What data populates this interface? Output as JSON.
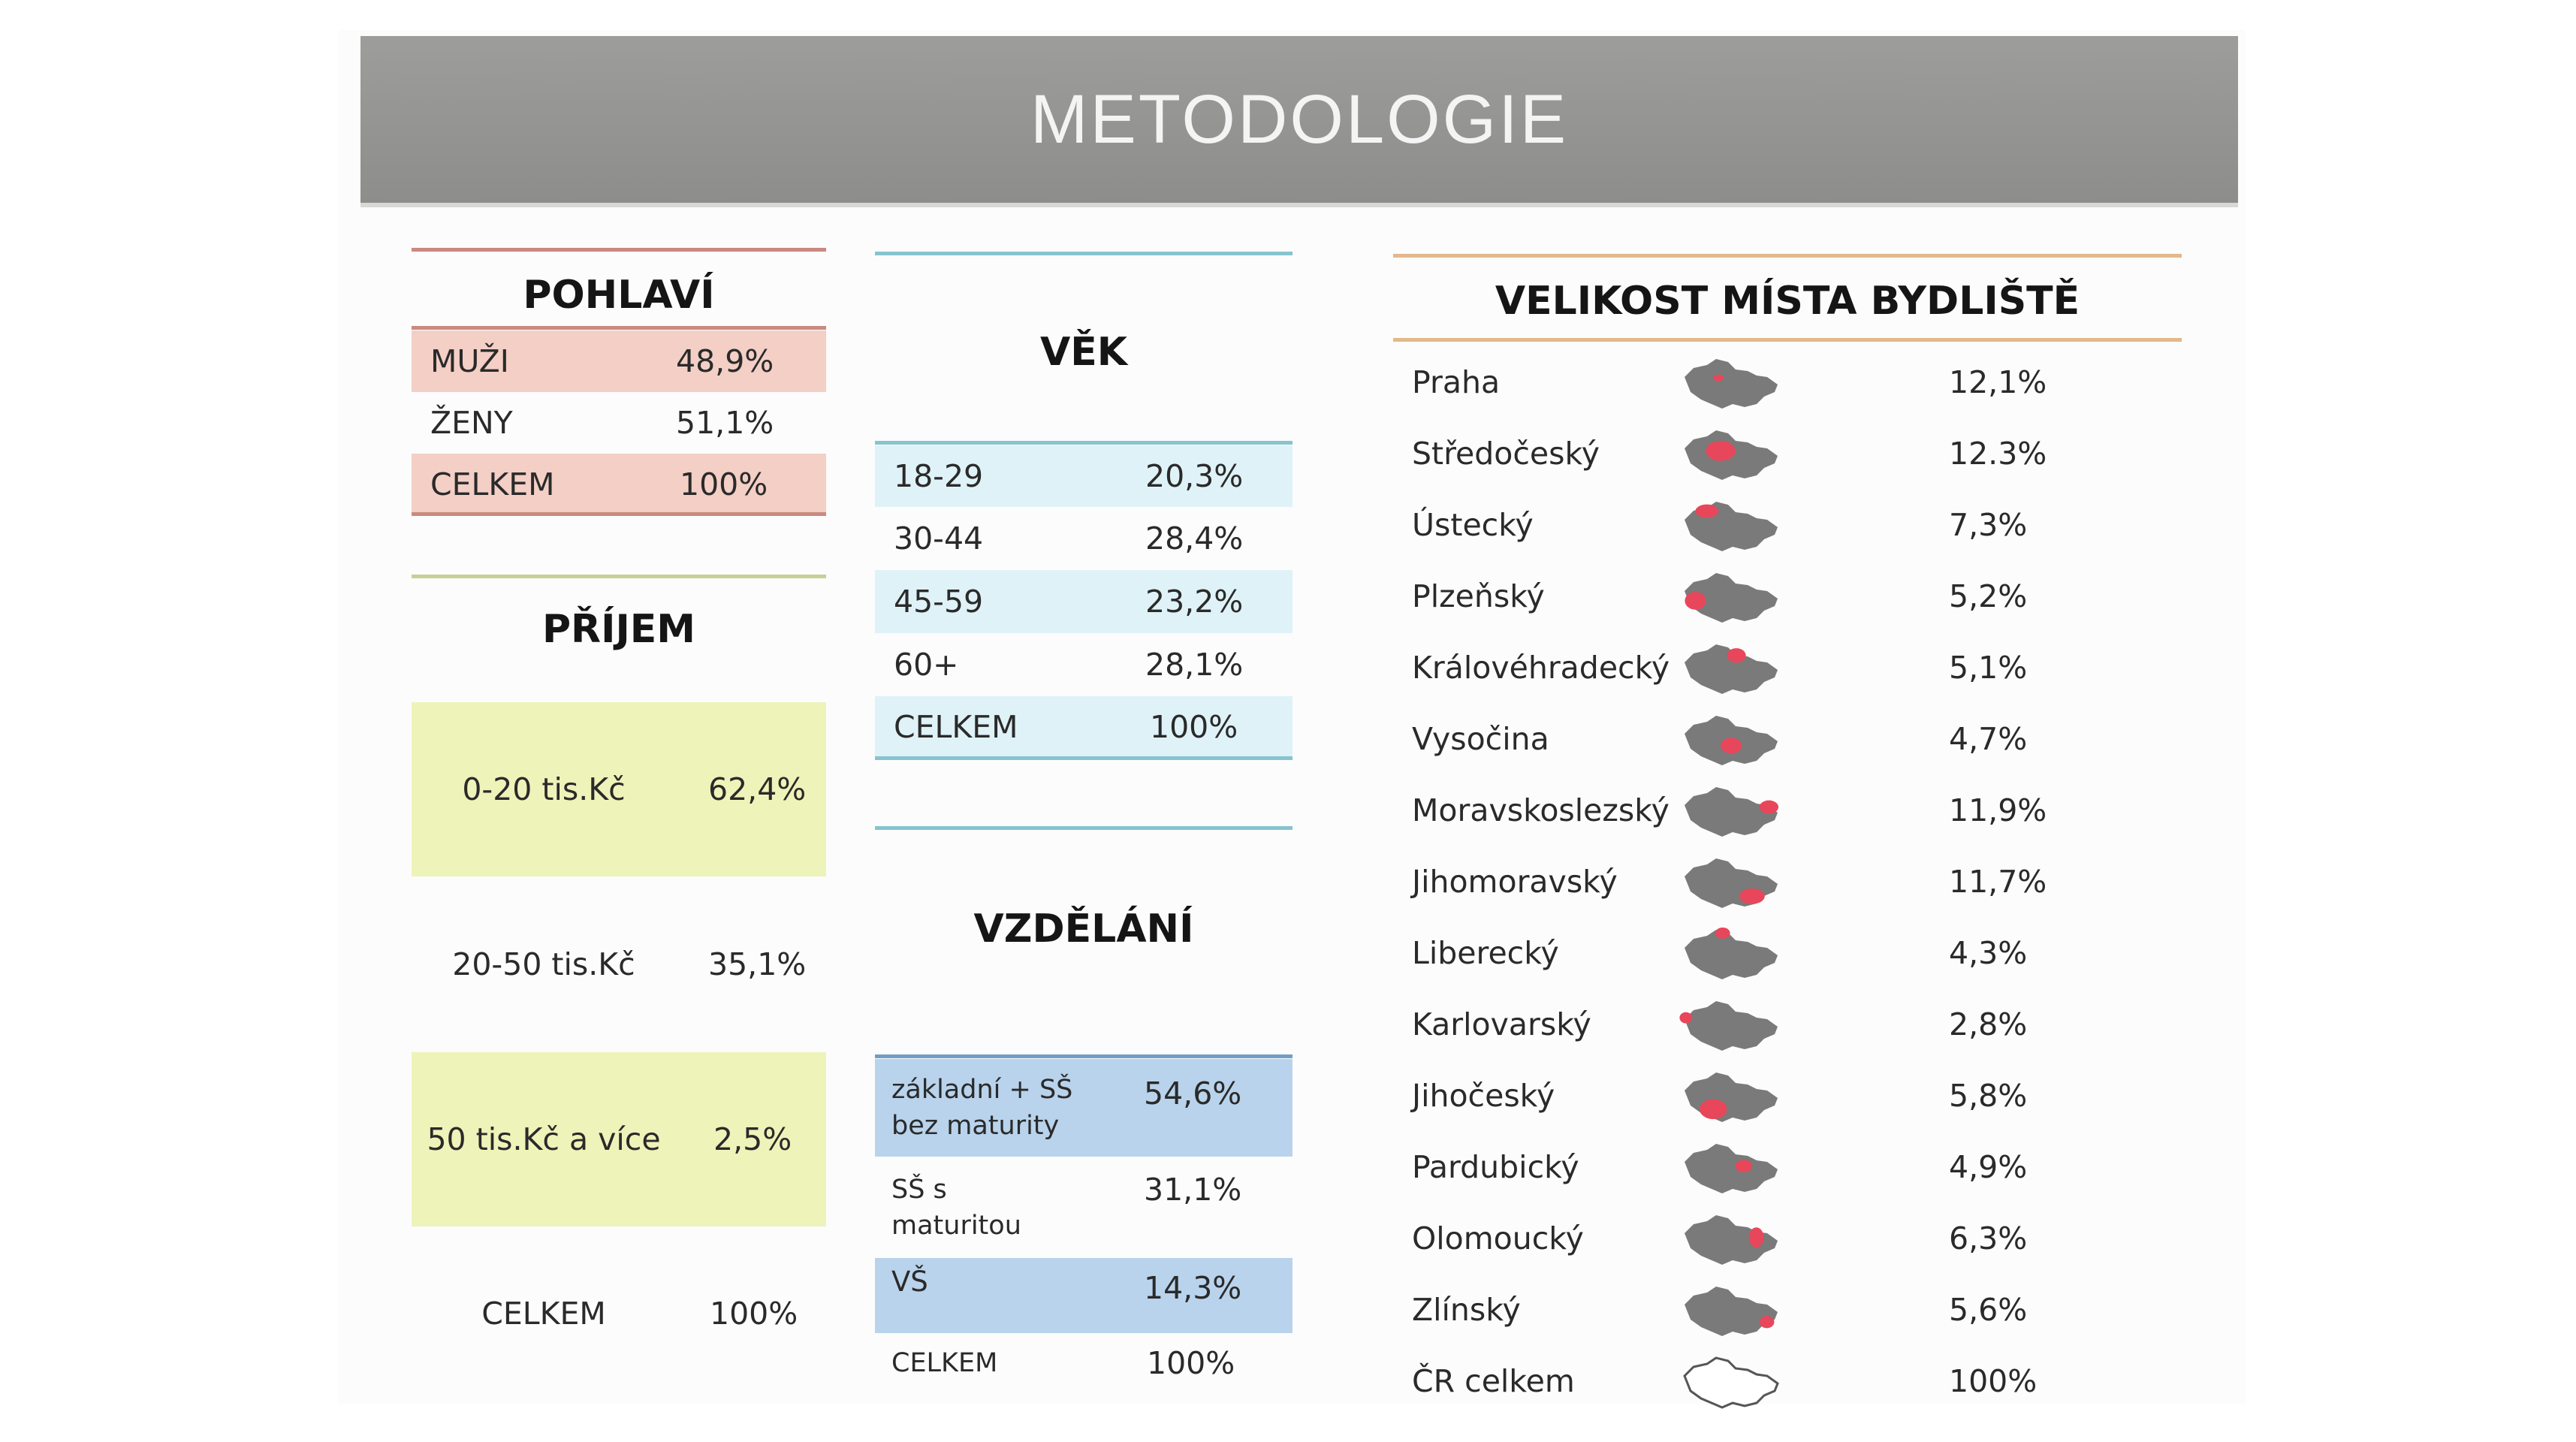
{
  "title": "METODOLOGIE",
  "pohlavi": {
    "heading": "POHLAVÍ",
    "rows": [
      {
        "label": "MUŽI",
        "value": "48,9%"
      },
      {
        "label": "ŽENY",
        "value": "51,1%"
      },
      {
        "label": "CELKEM",
        "value": "100%"
      }
    ]
  },
  "prijem": {
    "heading": "PŘÍJEM",
    "rows": [
      {
        "label": "0-20 tis.Kč",
        "value": "62,4%"
      },
      {
        "label": "20-50 tis.Kč",
        "value": "35,1%"
      },
      {
        "label": "50 tis.Kč a více",
        "value": "2,5%"
      },
      {
        "label": "CELKEM",
        "value": "100%"
      }
    ]
  },
  "vek": {
    "heading": "VĚK",
    "rows": [
      {
        "label": "18-29",
        "value": "20,3%"
      },
      {
        "label": "30-44",
        "value": "28,4%"
      },
      {
        "label": "45-59",
        "value": "23,2%"
      },
      {
        "label": "60+",
        "value": "28,1%"
      },
      {
        "label": "CELKEM",
        "value": "100%"
      }
    ]
  },
  "vzdelani": {
    "heading": "VZDĚLÁNÍ",
    "rows": [
      {
        "label": "základní + SŠ bez maturity",
        "value": "54,6%"
      },
      {
        "label": "SŠ s maturitou",
        "value": "31,1%"
      },
      {
        "label": "VŠ",
        "value": "14,3%"
      },
      {
        "label": "CELKEM",
        "value": "100%"
      }
    ]
  },
  "velikost": {
    "heading": "VELIKOST MÍSTA BYDLIŠTĚ",
    "rows": [
      {
        "label": "Praha",
        "value": "12,1%",
        "icon": "czech-map-praha-icon"
      },
      {
        "label": "Středočeský",
        "value": "12.3%",
        "icon": "czech-map-stredocesky-icon"
      },
      {
        "label": "Ústecký",
        "value": "7,3%",
        "icon": "czech-map-ustecky-icon"
      },
      {
        "label": "Plzeňský",
        "value": "5,2%",
        "icon": "czech-map-plzensky-icon"
      },
      {
        "label": "Královéhradecký",
        "value": "5,1%",
        "icon": "czech-map-kralovehradecky-icon"
      },
      {
        "label": "Vysočina",
        "value": "4,7%",
        "icon": "czech-map-vysocina-icon"
      },
      {
        "label": "Moravskoslezský",
        "value": "11,9%",
        "icon": "czech-map-moravskoslezsky-icon"
      },
      {
        "label": "Jihomoravský",
        "value": "11,7%",
        "icon": "czech-map-jihomoravsky-icon"
      },
      {
        "label": "Liberecký",
        "value": "4,3%",
        "icon": "czech-map-liberecky-icon"
      },
      {
        "label": "Karlovarský",
        "value": "2,8%",
        "icon": "czech-map-karlovarsky-icon"
      },
      {
        "label": "Jihočeský",
        "value": "5,8%",
        "icon": "czech-map-jihocesky-icon"
      },
      {
        "label": "Pardubický",
        "value": "4,9%",
        "icon": "czech-map-pardubicky-icon"
      },
      {
        "label": "Olomoucký",
        "value": "6,3%",
        "icon": "czech-map-olomoucky-icon"
      },
      {
        "label": "Zlínský",
        "value": "5,6%",
        "icon": "czech-map-zlinsky-icon"
      },
      {
        "label": "ČR celkem",
        "value": "100%",
        "icon": "czech-map-outline-icon"
      }
    ]
  },
  "colors": {
    "banner": "#8f908d",
    "pohlavi_fill": "#f3cfc6",
    "pohlavi_rule": "#c98a80",
    "prijem_fill": "#eef3b9",
    "prijem_rule": "#c7cf95",
    "vek_fill": "#dff2f7",
    "vek_rule": "#86c4cf",
    "vzdelani_fill": "#b9d3ec",
    "vzdelani_rule": "#6f9fc7",
    "velikost_rule": "#e4b88c",
    "map_gray": "#7a7a7a",
    "map_red": "#e8465a"
  }
}
